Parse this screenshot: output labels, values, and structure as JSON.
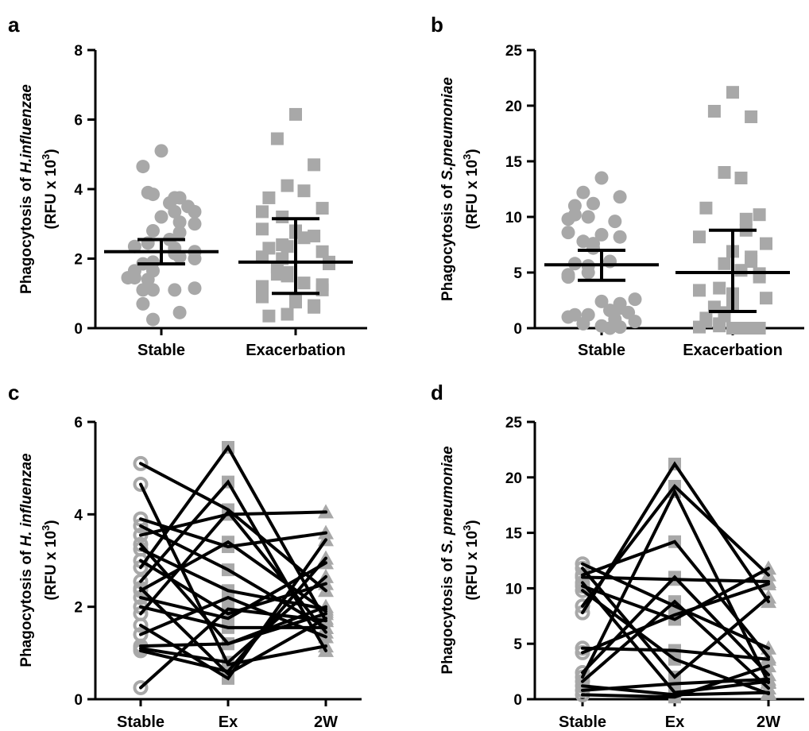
{
  "chart_data": [
    {
      "panel": "a",
      "type": "scatter",
      "ylabel_prefix": "Phagocytosis of ",
      "ylabel_italic": "H.influenzae",
      "ylabel_line2": "(RFU x 10",
      "ylabel_sup": "3",
      "ylabel_close": ")",
      "ylim": [
        0,
        8
      ],
      "yticks": [
        0,
        2,
        4,
        6,
        8
      ],
      "categories": [
        "Stable",
        "Exacerbation"
      ],
      "series": [
        {
          "category": "Stable",
          "marker": "circle",
          "values": [
            5.1,
            4.65,
            3.75,
            3.85,
            3.6,
            3.5,
            3.9,
            3.75,
            3.35,
            3.35,
            3.0,
            3.2,
            3.05,
            2.75,
            2.8,
            2.55,
            2.35,
            2.45,
            2.3,
            2.15,
            2.2,
            2.0,
            2.05,
            1.85,
            1.9,
            1.65,
            1.65,
            1.45,
            1.4,
            1.45,
            1.1,
            1.15,
            1.1,
            1.1,
            0.7,
            0.45,
            0.25
          ],
          "mean": 2.2,
          "error": [
            1.85,
            2.55
          ]
        },
        {
          "category": "Exacerbation",
          "marker": "square",
          "values": [
            6.15,
            5.45,
            4.7,
            4.1,
            3.95,
            3.75,
            3.45,
            3.2,
            3.35,
            2.85,
            2.8,
            2.75,
            2.65,
            2.6,
            2.35,
            2.3,
            2.4,
            2.2,
            2.0,
            2.05,
            1.9,
            1.85,
            1.75,
            1.55,
            1.6,
            1.5,
            1.3,
            1.25,
            1.1,
            1.2,
            1.05,
            0.9,
            0.85,
            0.75,
            0.65,
            0.6,
            0.4,
            0.35
          ],
          "mean": 1.9,
          "error": [
            1.0,
            3.15
          ]
        }
      ]
    },
    {
      "panel": "b",
      "type": "scatter",
      "ylabel_prefix": "Phagocytosis of ",
      "ylabel_italic": "S.pneumoniae",
      "ylabel_line2": "(RFU x 10",
      "ylabel_sup": "3",
      "ylabel_close": ")",
      "ylim": [
        0,
        25
      ],
      "yticks": [
        0,
        5,
        10,
        15,
        20,
        25
      ],
      "categories": [
        "Stable",
        "Exacerbation"
      ],
      "series": [
        {
          "category": "Stable",
          "marker": "circle",
          "values": [
            13.5,
            12.2,
            11.8,
            11.2,
            11.0,
            10.2,
            10.0,
            9.8,
            9.6,
            8.6,
            8.4,
            8.2,
            7.8,
            7.6,
            7.2,
            6.0,
            5.8,
            5.6,
            5.0,
            4.8,
            4.6,
            2.6,
            2.4,
            2.2,
            1.8,
            1.6,
            1.4,
            1.2,
            1.2,
            1.0,
            0.8,
            0.6,
            0.4,
            0.2,
            0.1,
            0.0
          ],
          "mean": 5.7,
          "error": [
            4.3,
            7.0
          ]
        },
        {
          "category": "Exacerbation",
          "marker": "square",
          "values": [
            21.2,
            19.5,
            19.0,
            14.0,
            13.5,
            10.8,
            10.2,
            9.8,
            8.8,
            8.2,
            7.6,
            6.9,
            6.4,
            6.0,
            5.8,
            5.2,
            4.9,
            4.6,
            3.6,
            3.4,
            3.1,
            2.7,
            2.2,
            1.9,
            1.4,
            1.1,
            0.9,
            0.6,
            0.4,
            0.2,
            0.1,
            0.0,
            0.0,
            0.0,
            0.0
          ],
          "mean": 5.0,
          "error": [
            1.5,
            8.8
          ]
        }
      ]
    },
    {
      "panel": "c",
      "type": "line",
      "ylabel_prefix": "Phagocytosis of ",
      "ylabel_italic": "H. influenzae",
      "ylabel_line2": "(RFU x 10",
      "ylabel_sup": "3",
      "ylabel_close": ")",
      "ylim": [
        0,
        6
      ],
      "yticks": [
        0,
        2,
        4,
        6
      ],
      "categories": [
        "Stable",
        "Ex",
        "2W"
      ],
      "pairs": [
        [
          5.1,
          4.1,
          2.35
        ],
        [
          4.65,
          0.75,
          1.15
        ],
        [
          3.9,
          3.3,
          3.6
        ],
        [
          3.75,
          2.8,
          1.55
        ],
        [
          3.55,
          4.0,
          4.05
        ],
        [
          3.35,
          1.2,
          1.85
        ],
        [
          3.25,
          2.35,
          1.95
        ],
        [
          3.0,
          1.85,
          2.5
        ],
        [
          2.85,
          5.45,
          1.7
        ],
        [
          2.55,
          4.7,
          1.05
        ],
        [
          2.4,
          0.55,
          1.75
        ],
        [
          2.35,
          3.4,
          1.9
        ],
        [
          2.2,
          1.75,
          2.95
        ],
        [
          2.0,
          1.55,
          1.55
        ],
        [
          1.85,
          4.05,
          1.45
        ],
        [
          1.6,
          0.45,
          3.45
        ],
        [
          1.4,
          2.2,
          1.35
        ],
        [
          1.15,
          1.2,
          2.0
        ],
        [
          1.1,
          0.8,
          2.65
        ],
        [
          1.05,
          0.6,
          3.05
        ],
        [
          0.25,
          1.95,
          1.7
        ]
      ]
    },
    {
      "panel": "d",
      "type": "line",
      "ylabel_prefix": "Phagocytosis of ",
      "ylabel_italic": "S. pneumoniae",
      "ylabel_line2": "(RFU x 10",
      "ylabel_sup": "3",
      "ylabel_close": ")",
      "ylim": [
        0,
        25
      ],
      "yticks": [
        0,
        5,
        10,
        15,
        20,
        25
      ],
      "categories": [
        "Stable",
        "Ex",
        "2W"
      ],
      "pairs": [
        [
          12.2,
          8.4,
          4.6
        ],
        [
          11.8,
          2.0,
          9.2
        ],
        [
          11.2,
          14.2,
          3.8
        ],
        [
          11.0,
          10.8,
          10.6
        ],
        [
          10.5,
          0.6,
          1.6
        ],
        [
          10.2,
          7.2,
          11.8
        ],
        [
          9.8,
          3.6,
          0.5
        ],
        [
          8.4,
          19.2,
          11.2
        ],
        [
          7.8,
          21.2,
          8.8
        ],
        [
          4.6,
          4.4,
          3.6
        ],
        [
          4.2,
          7.6,
          10.4
        ],
        [
          2.4,
          11.0,
          2.2
        ],
        [
          2.0,
          18.7,
          1.5
        ],
        [
          1.6,
          8.8,
          1.0
        ],
        [
          1.2,
          0.4,
          0.6
        ],
        [
          0.8,
          1.4,
          1.8
        ],
        [
          0.4,
          0.2,
          3.0
        ]
      ]
    }
  ]
}
